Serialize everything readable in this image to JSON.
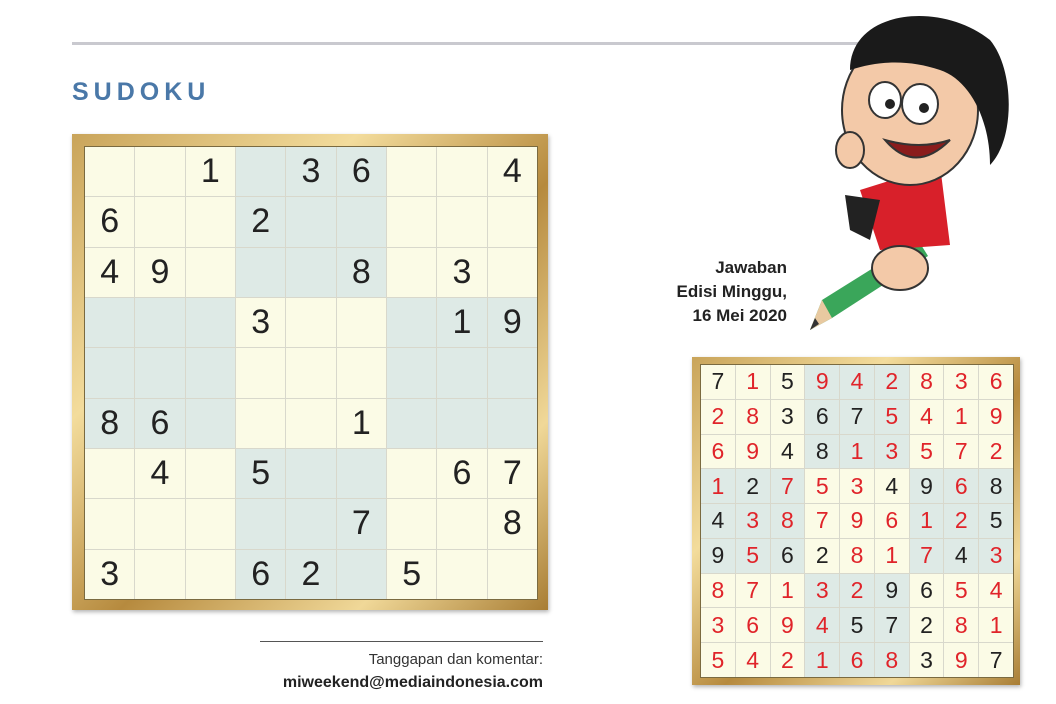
{
  "header": {
    "title": "SUDOKU"
  },
  "puzzle": {
    "rows": [
      "  1 36  4",
      "6  2     ",
      "49   8 3 ",
      "   3   19",
      "         ",
      "86   1   ",
      " 4 5   67",
      "     7  8",
      "3  62 5  "
    ]
  },
  "answer": {
    "caption": [
      "Jawaban",
      "Edisi Minggu,",
      "16 Mei 2020"
    ],
    "rows": [
      "715942836",
      "283675419",
      "694813572",
      "127534968",
      "438796125",
      "956281743",
      "871329654",
      "369457281",
      "542168397"
    ],
    "given_mask": [
      "101000000",
      "001110000",
      "001100000",
      "010001101",
      "100000001",
      "101100010",
      "000001100",
      "000011100",
      "000000101"
    ],
    "colors": {
      "given": "#222222",
      "solution": "#e0242a"
    }
  },
  "footer": {
    "line1": "Tanggapan dan komentar:",
    "line2": "miweekend@mediaindonesia.com"
  },
  "colors": {
    "title": "#4a78a8",
    "cream": "#fbfbe6",
    "blue": "#deeae6",
    "frame": "#c9a45a"
  }
}
